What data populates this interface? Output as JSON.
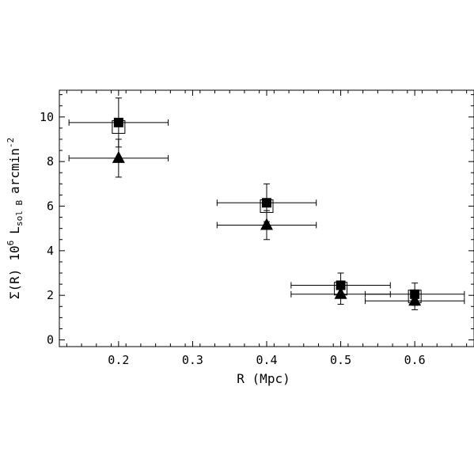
{
  "chart_data": {
    "type": "scatter",
    "title": "",
    "xlabel": "R (Mpc)",
    "ylabel": {
      "sigma": "Σ(R)",
      "scale_base": "10",
      "scale_exp": "6",
      "lum": "L",
      "lum_sub": "sol B",
      "unit_base": "arcmin",
      "unit_exp": "-2"
    },
    "xlim": [
      0.12,
      0.68
    ],
    "ylim": [
      -0.3,
      11.2
    ],
    "xticks": [
      0.2,
      0.3,
      0.4,
      0.5,
      0.6
    ],
    "xtick_labels": [
      "0.2",
      "0.3",
      "0.4",
      "0.5",
      "0.6"
    ],
    "yticks": [
      0,
      2,
      4,
      6,
      8,
      10
    ],
    "ytick_labels": [
      "0",
      "2",
      "4",
      "6",
      "8",
      "10"
    ],
    "grid": false,
    "legend": "none",
    "series": [
      {
        "marker": "filled-square",
        "points": [
          {
            "x": 0.2,
            "y": 9.75,
            "xerr": 0.067,
            "yerr": 1.1
          },
          {
            "x": 0.4,
            "y": 6.15,
            "xerr": 0.067,
            "yerr": 0.85
          },
          {
            "x": 0.5,
            "y": 2.45,
            "xerr": 0.067,
            "yerr": 0.55
          },
          {
            "x": 0.6,
            "y": 2.05,
            "xerr": 0.067,
            "yerr": 0.5
          }
        ]
      },
      {
        "marker": "open-square",
        "points": [
          {
            "x": 0.2,
            "y": 9.55
          },
          {
            "x": 0.4,
            "y": 6.0
          },
          {
            "x": 0.5,
            "y": 2.3
          },
          {
            "x": 0.6,
            "y": 1.95
          }
        ]
      },
      {
        "marker": "filled-triangle",
        "points": [
          {
            "x": 0.2,
            "y": 8.15,
            "xerr": 0.067,
            "yerr": 0.85
          },
          {
            "x": 0.4,
            "y": 5.15,
            "xerr": 0.067,
            "yerr": 0.65
          },
          {
            "x": 0.5,
            "y": 2.05,
            "xerr": 0.067,
            "yerr": 0.45
          },
          {
            "x": 0.6,
            "y": 1.75,
            "xerr": 0.067,
            "yerr": 0.4
          }
        ]
      }
    ]
  }
}
